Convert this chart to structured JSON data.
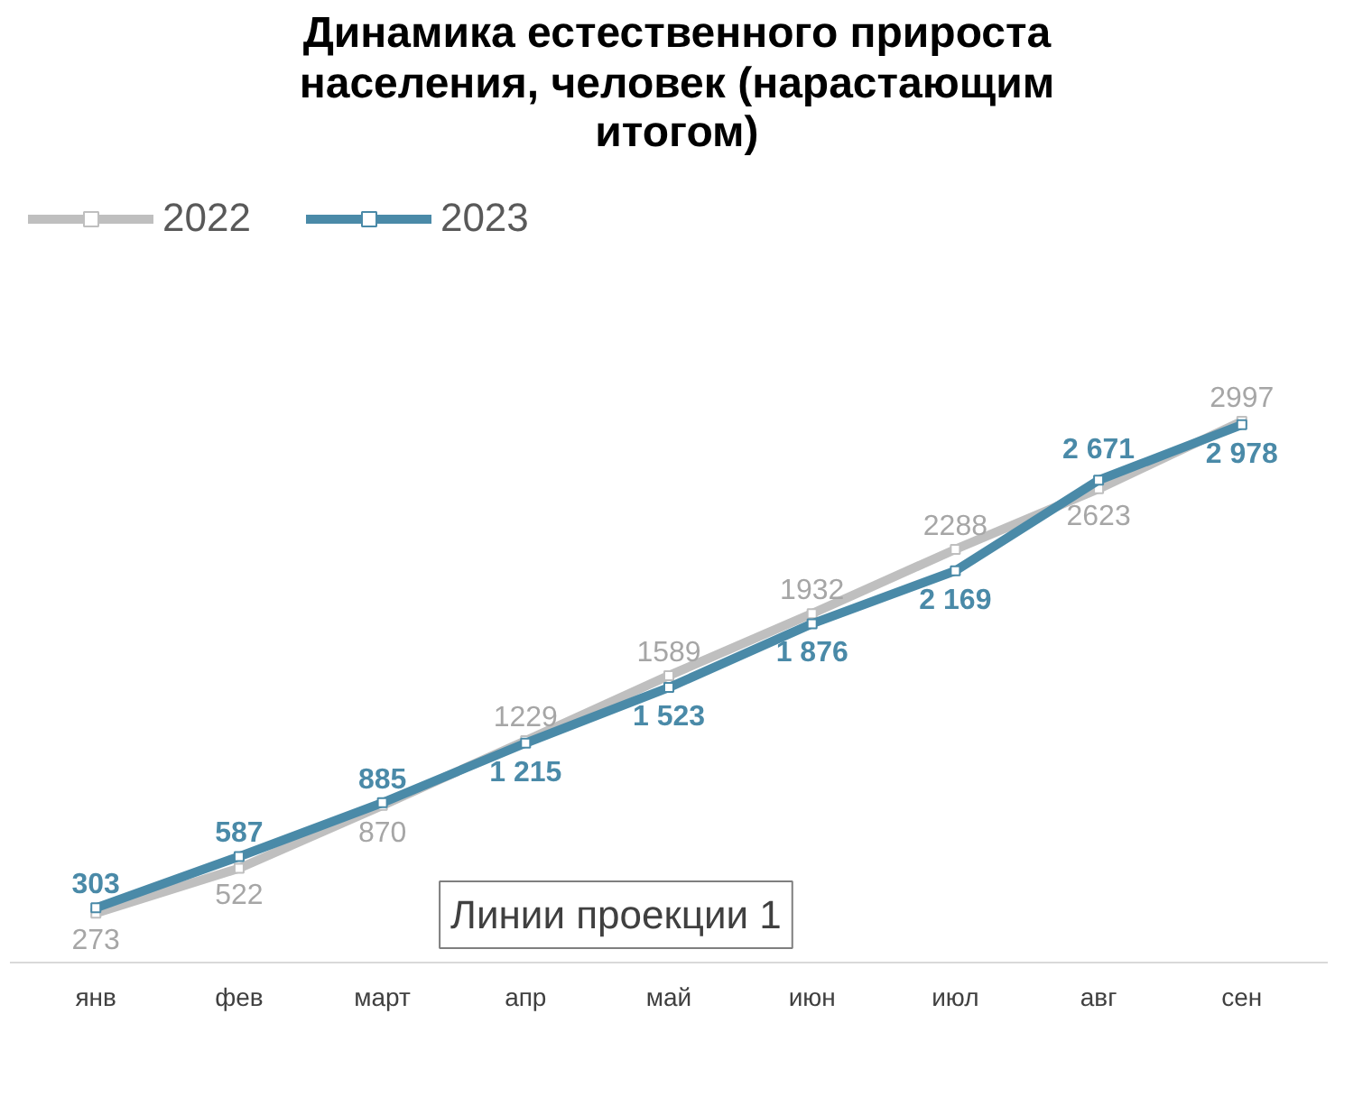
{
  "chart_data": {
    "type": "line",
    "title": "Динамика естественного прироста населения, человек  (нарастающим итогом)",
    "categories": [
      "янв",
      "фев",
      "март",
      "апр",
      "май",
      "июн",
      "июл",
      "авг",
      "сен"
    ],
    "series": [
      {
        "name": "2022",
        "color": "#bfbfbf",
        "values": [
          273,
          522,
          870,
          1229,
          1589,
          1932,
          2288,
          2623,
          2997
        ],
        "value_labels": [
          "273",
          "522",
          "870",
          "1229",
          "1589",
          "1932",
          "2288",
          "2623",
          "2997"
        ]
      },
      {
        "name": "2023",
        "color": "#4a8aa8",
        "values": [
          303,
          587,
          885,
          1215,
          1523,
          1876,
          2169,
          2671,
          2978
        ],
        "value_labels": [
          "303",
          "587",
          "885",
          "1 215",
          "1 523",
          "1 876",
          "2 169",
          "2 671",
          "2 978"
        ]
      }
    ],
    "annotations": [
      "Линии проекции 1"
    ],
    "legend": "top left",
    "grid": false,
    "marker": "square",
    "line_style": "solid"
  }
}
